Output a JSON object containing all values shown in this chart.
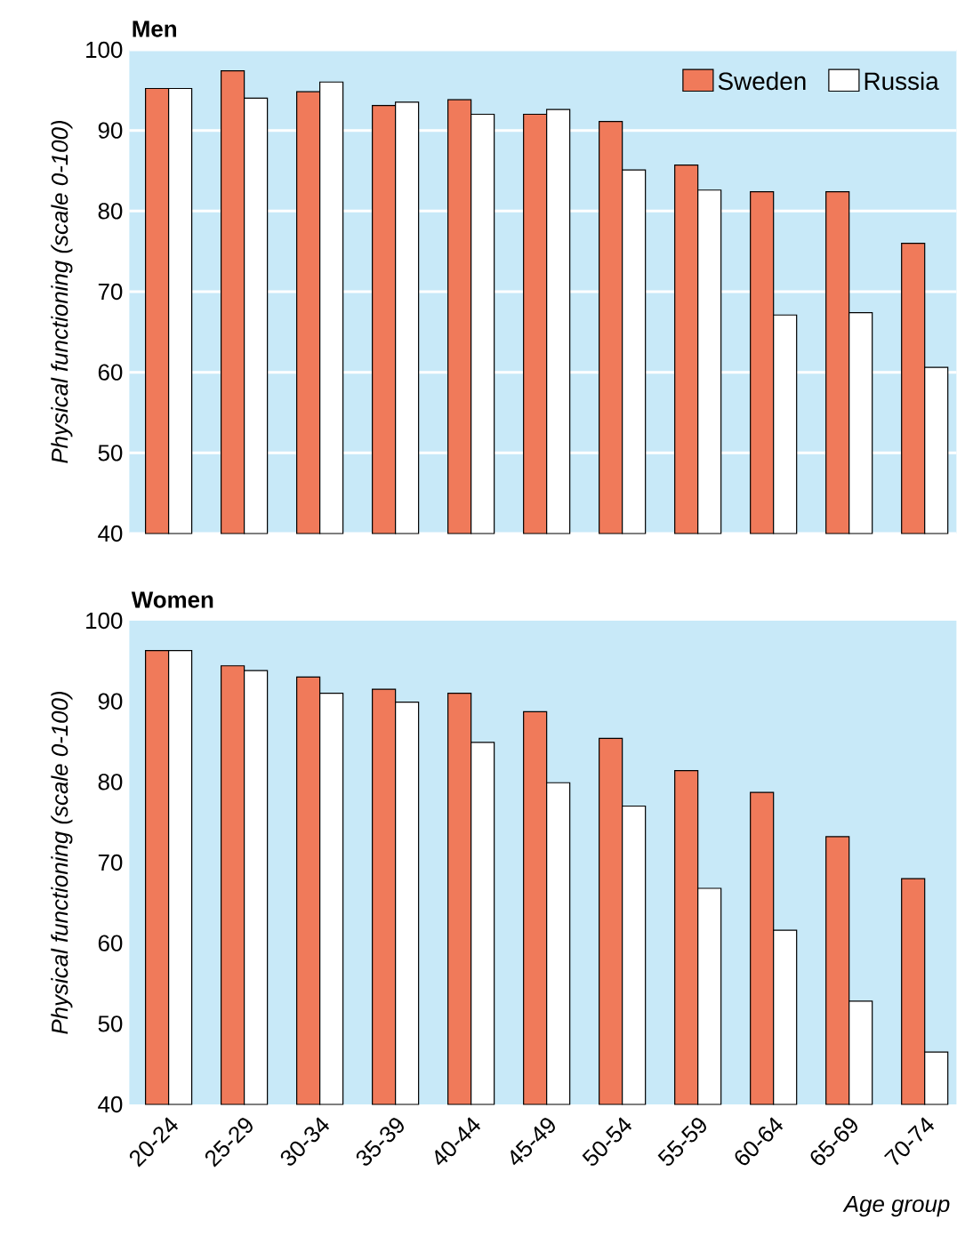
{
  "chart_data": [
    {
      "type": "bar",
      "title": "Men",
      "ylabel": "Physical functioning (scale 0-100)",
      "categories": [
        null,
        null,
        null,
        null,
        null,
        null,
        null,
        null,
        null,
        null,
        null
      ],
      "series": [
        {
          "name": "Sweden",
          "color": "#f07a5a",
          "values": [
            95.2,
            97.4,
            94.8,
            93.1,
            93.8,
            92.0,
            91.1,
            85.7,
            82.4,
            82.4,
            76.0
          ]
        },
        {
          "name": "Russia",
          "color": "#ffffff",
          "values": [
            95.2,
            94.0,
            96.0,
            93.5,
            92.0,
            92.6,
            85.1,
            82.6,
            67.1,
            67.4,
            60.6
          ]
        }
      ],
      "ylim": [
        40,
        100
      ],
      "yticks": [
        40,
        50,
        60,
        70,
        80,
        90,
        100
      ],
      "grid": "y",
      "legend": "top right",
      "tick_labels": "y"
    },
    {
      "type": "bar",
      "title": "Women",
      "ylabel": "Physical functioning (scale 0-100)",
      "xlabel": "Age group",
      "categories": [
        "20-24",
        "25-29",
        "30-34",
        "35-39",
        "40-44",
        "45-49",
        "50-54",
        "55-59",
        "60-64",
        "65-69",
        "70-74"
      ],
      "series": [
        {
          "color": "#f07a5a",
          "values": [
            96.3,
            94.4,
            93.0,
            91.5,
            91.0,
            88.7,
            85.4,
            81.4,
            78.7,
            73.2,
            68.0
          ]
        },
        {
          "color": "#ffffff",
          "values": [
            96.3,
            93.8,
            91.0,
            89.9,
            84.9,
            79.9,
            77.0,
            66.8,
            61.6,
            52.8,
            46.5
          ]
        }
      ],
      "ylim": [
        40,
        100
      ],
      "yticks": [
        40,
        50,
        60,
        70,
        80,
        90,
        100
      ]
    }
  ]
}
